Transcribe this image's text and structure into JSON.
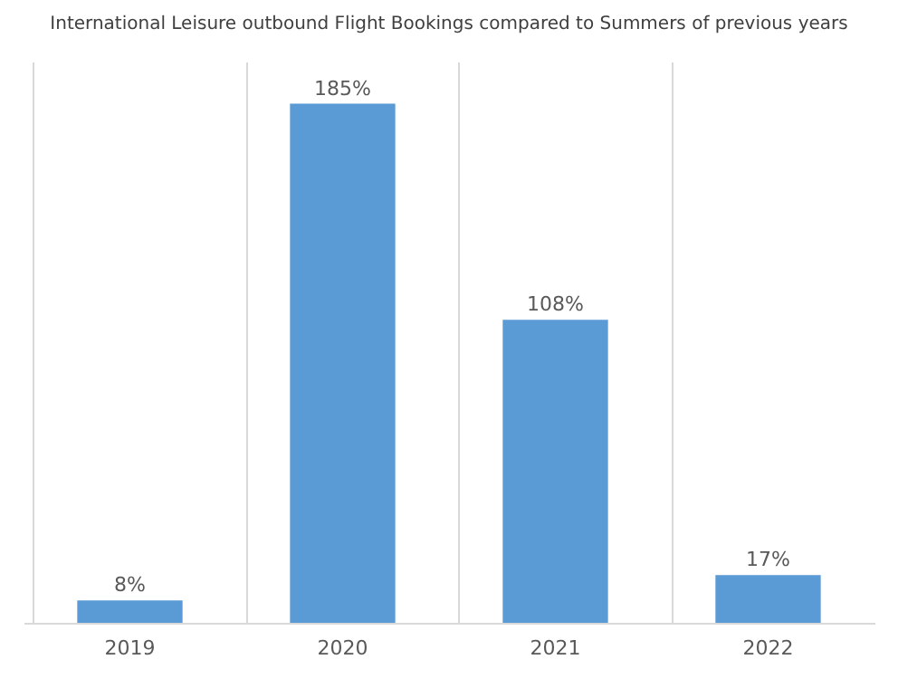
{
  "chart_data": {
    "type": "bar",
    "title": "International Leisure outbound Flight Bookings compared  to Summers of previous years",
    "categories": [
      "2019",
      "2020",
      "2021",
      "2022"
    ],
    "values": [
      8,
      185,
      108,
      17
    ],
    "value_labels": [
      "8%",
      "185%",
      "108%",
      "17%"
    ],
    "color": "#5b9bd5",
    "grid": "x"
  }
}
